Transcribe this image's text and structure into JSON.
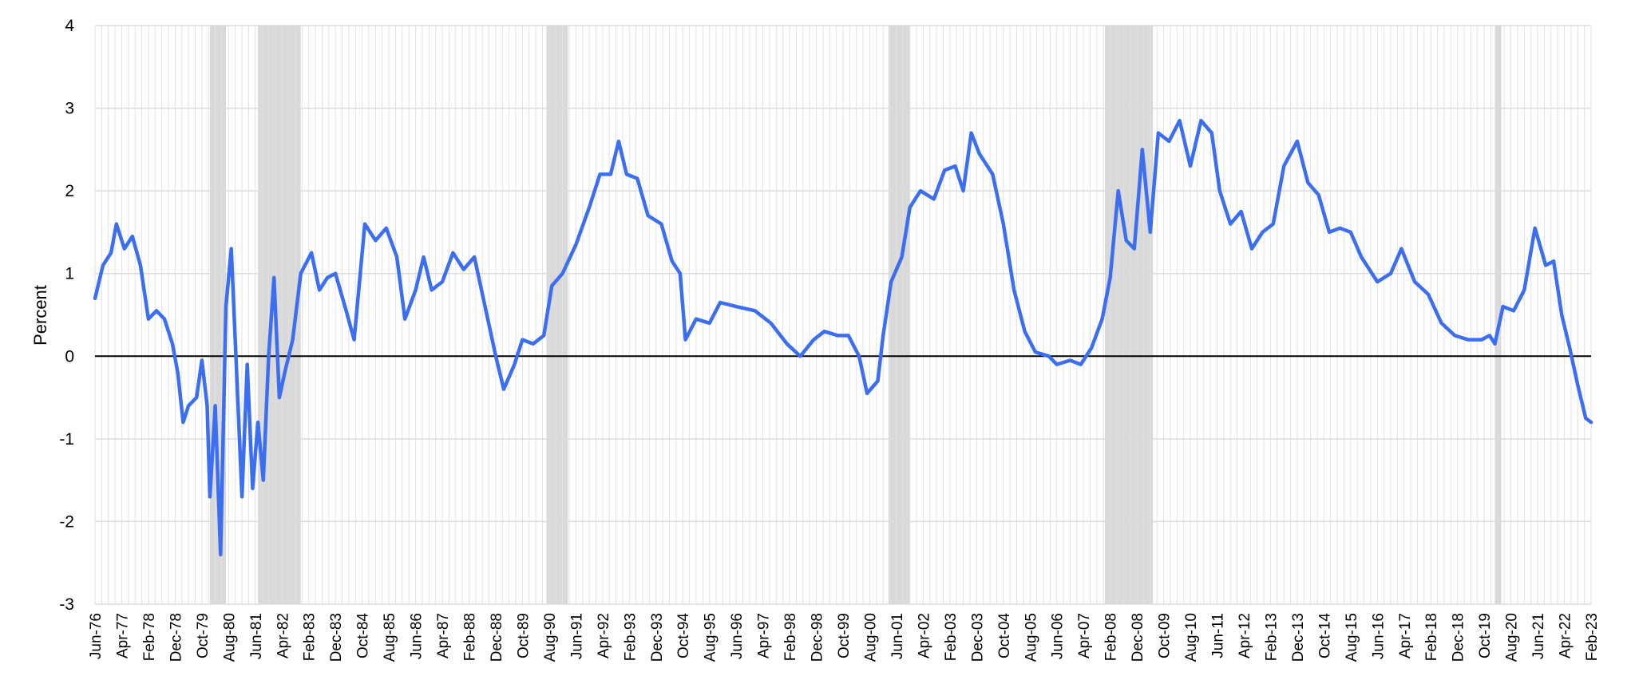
{
  "chart_data": {
    "type": "line",
    "title": "",
    "xlabel": "",
    "ylabel": "Percent",
    "ylim": [
      -3,
      4
    ],
    "yticks": [
      -3,
      -2,
      -1,
      0,
      1,
      2,
      3,
      4
    ],
    "xlim": [
      "1976-06",
      "2023-02"
    ],
    "xtick_labels": [
      "Jun-76",
      "Apr-77",
      "Feb-78",
      "Dec-78",
      "Oct-79",
      "Aug-80",
      "Jun-81",
      "Apr-82",
      "Feb-83",
      "Dec-83",
      "Oct-84",
      "Aug-85",
      "Jun-86",
      "Apr-87",
      "Feb-88",
      "Dec-88",
      "Oct-89",
      "Aug-90",
      "Jun-91",
      "Apr-92",
      "Feb-93",
      "Dec-93",
      "Oct-94",
      "Aug-95",
      "Jun-96",
      "Apr-97",
      "Feb-98",
      "Dec-98",
      "Oct-99",
      "Aug-00",
      "Jun-01",
      "Apr-02",
      "Feb-03",
      "Dec-03",
      "Oct-04",
      "Aug-05",
      "Jun-06",
      "Apr-07",
      "Feb-08",
      "Dec-08",
      "Oct-09",
      "Aug-10",
      "Jun-11",
      "Apr-12",
      "Feb-13",
      "Dec-13",
      "Oct-14",
      "Aug-15",
      "Jun-16",
      "Apr-17",
      "Feb-18",
      "Dec-18",
      "Oct-19",
      "Aug-20",
      "Jun-21",
      "Apr-22",
      "Feb-23"
    ],
    "grid": true,
    "line_color": "#3b6ef0",
    "recession_color": "#d9d9d9",
    "recessions": [
      {
        "start": "1980-01",
        "end": "1980-07"
      },
      {
        "start": "1981-07",
        "end": "1982-11"
      },
      {
        "start": "1990-07",
        "end": "1991-03"
      },
      {
        "start": "2001-03",
        "end": "2001-11"
      },
      {
        "start": "2007-12",
        "end": "2009-06"
      },
      {
        "start": "2020-02",
        "end": "2020-04"
      }
    ],
    "series": [
      {
        "name": "",
        "points": [
          [
            "1976-06",
            0.7
          ],
          [
            "1976-09",
            1.1
          ],
          [
            "1976-12",
            1.25
          ],
          [
            "1977-02",
            1.6
          ],
          [
            "1977-05",
            1.3
          ],
          [
            "1977-08",
            1.45
          ],
          [
            "1977-11",
            1.1
          ],
          [
            "1978-02",
            0.45
          ],
          [
            "1978-05",
            0.55
          ],
          [
            "1978-08",
            0.45
          ],
          [
            "1978-11",
            0.15
          ],
          [
            "1979-01",
            -0.2
          ],
          [
            "1979-03",
            -0.8
          ],
          [
            "1979-05",
            -0.6
          ],
          [
            "1979-08",
            -0.5
          ],
          [
            "1979-10",
            -0.05
          ],
          [
            "1979-12",
            -0.6
          ],
          [
            "1980-01",
            -1.7
          ],
          [
            "1980-03",
            -0.6
          ],
          [
            "1980-05",
            -2.4
          ],
          [
            "1980-07",
            0.6
          ],
          [
            "1980-09",
            1.3
          ],
          [
            "1980-11",
            -0.2
          ],
          [
            "1981-01",
            -1.7
          ],
          [
            "1981-03",
            -0.1
          ],
          [
            "1981-05",
            -1.6
          ],
          [
            "1981-07",
            -0.8
          ],
          [
            "1981-09",
            -1.5
          ],
          [
            "1981-11",
            0.0
          ],
          [
            "1982-01",
            0.95
          ],
          [
            "1982-03",
            -0.5
          ],
          [
            "1982-05",
            -0.2
          ],
          [
            "1982-08",
            0.2
          ],
          [
            "1982-11",
            1.0
          ],
          [
            "1983-03",
            1.25
          ],
          [
            "1983-06",
            0.8
          ],
          [
            "1983-09",
            0.95
          ],
          [
            "1983-12",
            1.0
          ],
          [
            "1984-04",
            0.55
          ],
          [
            "1984-07",
            0.2
          ],
          [
            "1984-11",
            1.6
          ],
          [
            "1985-03",
            1.4
          ],
          [
            "1985-07",
            1.55
          ],
          [
            "1985-11",
            1.2
          ],
          [
            "1986-02",
            0.45
          ],
          [
            "1986-06",
            0.8
          ],
          [
            "1986-09",
            1.2
          ],
          [
            "1986-12",
            0.8
          ],
          [
            "1987-04",
            0.9
          ],
          [
            "1987-08",
            1.25
          ],
          [
            "1987-12",
            1.05
          ],
          [
            "1988-04",
            1.2
          ],
          [
            "1988-08",
            0.6
          ],
          [
            "1988-12",
            0.0
          ],
          [
            "1989-03",
            -0.4
          ],
          [
            "1989-07",
            -0.1
          ],
          [
            "1989-10",
            0.2
          ],
          [
            "1990-02",
            0.15
          ],
          [
            "1990-06",
            0.25
          ],
          [
            "1990-09",
            0.85
          ],
          [
            "1991-01",
            1.0
          ],
          [
            "1991-06",
            1.35
          ],
          [
            "1991-11",
            1.8
          ],
          [
            "1992-03",
            2.2
          ],
          [
            "1992-07",
            2.2
          ],
          [
            "1992-10",
            2.6
          ],
          [
            "1993-01",
            2.2
          ],
          [
            "1993-05",
            2.15
          ],
          [
            "1993-09",
            1.7
          ],
          [
            "1994-02",
            1.6
          ],
          [
            "1994-06",
            1.15
          ],
          [
            "1994-09",
            1.0
          ],
          [
            "1994-11",
            0.2
          ],
          [
            "1995-03",
            0.45
          ],
          [
            "1995-08",
            0.4
          ],
          [
            "1995-12",
            0.65
          ],
          [
            "1996-06",
            0.6
          ],
          [
            "1997-01",
            0.55
          ],
          [
            "1997-07",
            0.4
          ],
          [
            "1998-01",
            0.15
          ],
          [
            "1998-06",
            0.0
          ],
          [
            "1998-11",
            0.2
          ],
          [
            "1999-03",
            0.3
          ],
          [
            "1999-08",
            0.25
          ],
          [
            "1999-12",
            0.25
          ],
          [
            "2000-04",
            0.0
          ],
          [
            "2000-07",
            -0.45
          ],
          [
            "2000-11",
            -0.3
          ],
          [
            "2001-01",
            0.25
          ],
          [
            "2001-04",
            0.9
          ],
          [
            "2001-08",
            1.2
          ],
          [
            "2001-11",
            1.8
          ],
          [
            "2002-03",
            2.0
          ],
          [
            "2002-08",
            1.9
          ],
          [
            "2002-12",
            2.25
          ],
          [
            "2003-04",
            2.3
          ],
          [
            "2003-07",
            2.0
          ],
          [
            "2003-10",
            2.7
          ],
          [
            "2004-01",
            2.45
          ],
          [
            "2004-06",
            2.2
          ],
          [
            "2004-10",
            1.6
          ],
          [
            "2005-02",
            0.8
          ],
          [
            "2005-06",
            0.3
          ],
          [
            "2005-10",
            0.05
          ],
          [
            "2006-03",
            0.0
          ],
          [
            "2006-06",
            -0.1
          ],
          [
            "2006-11",
            -0.05
          ],
          [
            "2007-03",
            -0.1
          ],
          [
            "2007-07",
            0.1
          ],
          [
            "2007-11",
            0.45
          ],
          [
            "2008-02",
            0.95
          ],
          [
            "2008-05",
            2.0
          ],
          [
            "2008-08",
            1.4
          ],
          [
            "2008-11",
            1.3
          ],
          [
            "2009-02",
            2.5
          ],
          [
            "2009-05",
            1.5
          ],
          [
            "2009-08",
            2.7
          ],
          [
            "2009-12",
            2.6
          ],
          [
            "2010-04",
            2.85
          ],
          [
            "2010-08",
            2.3
          ],
          [
            "2010-12",
            2.85
          ],
          [
            "2011-04",
            2.7
          ],
          [
            "2011-07",
            2.0
          ],
          [
            "2011-11",
            1.6
          ],
          [
            "2012-03",
            1.75
          ],
          [
            "2012-07",
            1.3
          ],
          [
            "2012-11",
            1.5
          ],
          [
            "2013-03",
            1.6
          ],
          [
            "2013-07",
            2.3
          ],
          [
            "2013-12",
            2.6
          ],
          [
            "2014-04",
            2.1
          ],
          [
            "2014-08",
            1.95
          ],
          [
            "2014-12",
            1.5
          ],
          [
            "2015-04",
            1.55
          ],
          [
            "2015-08",
            1.5
          ],
          [
            "2015-12",
            1.2
          ],
          [
            "2016-06",
            0.9
          ],
          [
            "2016-11",
            1.0
          ],
          [
            "2017-03",
            1.3
          ],
          [
            "2017-08",
            0.9
          ],
          [
            "2018-01",
            0.75
          ],
          [
            "2018-06",
            0.4
          ],
          [
            "2018-11",
            0.25
          ],
          [
            "2019-04",
            0.2
          ],
          [
            "2019-09",
            0.2
          ],
          [
            "2019-12",
            0.25
          ],
          [
            "2020-02",
            0.15
          ],
          [
            "2020-05",
            0.6
          ],
          [
            "2020-09",
            0.55
          ],
          [
            "2021-01",
            0.8
          ],
          [
            "2021-05",
            1.55
          ],
          [
            "2021-09",
            1.1
          ],
          [
            "2021-12",
            1.15
          ],
          [
            "2022-03",
            0.5
          ],
          [
            "2022-06",
            0.1
          ],
          [
            "2022-09",
            -0.35
          ],
          [
            "2022-12",
            -0.75
          ],
          [
            "2023-02",
            -0.8
          ]
        ]
      }
    ]
  }
}
